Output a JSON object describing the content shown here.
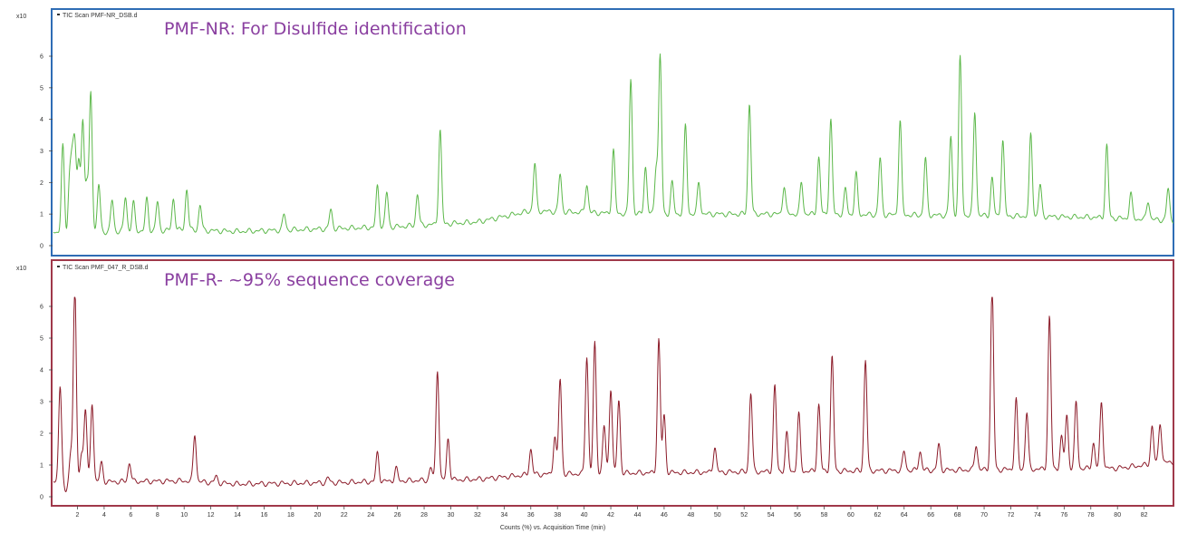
{
  "colors": {
    "frame_top": "#2f6db5",
    "frame_bottom": "#a0384a",
    "trace_top": "#5cb84a",
    "trace_bottom": "#8b1a28",
    "annotation": "#8a3fa0"
  },
  "chart_data": [
    {
      "type": "line",
      "legend": "TIC Scan PMF-NR_DSB.d",
      "annotation": "PMF-NR: For Disulfide identification",
      "y_multiplier": "x10",
      "y_ticks": [
        "0",
        "1",
        "2",
        "3",
        "4",
        "5",
        "6"
      ],
      "ylim": [
        -0.3,
        6.9
      ],
      "xlim": [
        0.2,
        84.2
      ],
      "baseline": [
        [
          0.2,
          0.4
        ],
        [
          10,
          0.5
        ],
        [
          14,
          0.45
        ],
        [
          22,
          0.55
        ],
        [
          26,
          0.6
        ],
        [
          32,
          0.75
        ],
        [
          36,
          1.1
        ],
        [
          44,
          1.0
        ],
        [
          56,
          1.0
        ],
        [
          70,
          0.95
        ],
        [
          78,
          0.9
        ],
        [
          84.2,
          0.8
        ]
      ],
      "peaks": [
        [
          0.9,
          2.8
        ],
        [
          1.2,
          -0.2
        ],
        [
          1.4,
          1.6
        ],
        [
          1.6,
          2.0
        ],
        [
          1.8,
          2.6
        ],
        [
          2.1,
          2.2
        ],
        [
          2.4,
          3.5
        ],
        [
          2.7,
          1.5
        ],
        [
          3.0,
          4.4
        ],
        [
          3.6,
          1.5
        ],
        [
          4.6,
          1.0
        ],
        [
          5.6,
          1.1
        ],
        [
          6.2,
          0.9
        ],
        [
          7.2,
          1.0
        ],
        [
          8.0,
          0.9
        ],
        [
          9.2,
          1.0
        ],
        [
          10.2,
          1.3
        ],
        [
          11.2,
          0.8
        ],
        [
          17.5,
          0.5
        ],
        [
          21.0,
          0.6
        ],
        [
          24.5,
          1.3
        ],
        [
          25.2,
          1.1
        ],
        [
          27.5,
          1.0
        ],
        [
          29.2,
          3.0
        ],
        [
          36.3,
          1.5
        ],
        [
          38.2,
          1.2
        ],
        [
          40.2,
          0.9
        ],
        [
          42.2,
          2.0
        ],
        [
          43.5,
          4.3
        ],
        [
          44.6,
          1.5
        ],
        [
          45.4,
          1.5
        ],
        [
          45.7,
          5.0
        ],
        [
          46.6,
          1.0
        ],
        [
          47.6,
          2.8
        ],
        [
          48.6,
          1.0
        ],
        [
          52.4,
          3.5
        ],
        [
          55.0,
          0.9
        ],
        [
          56.3,
          1.0
        ],
        [
          57.6,
          1.8
        ],
        [
          58.5,
          3.0
        ],
        [
          59.6,
          0.8
        ],
        [
          60.4,
          1.3
        ],
        [
          62.2,
          1.8
        ],
        [
          63.7,
          3.0
        ],
        [
          65.6,
          1.8
        ],
        [
          67.5,
          2.5
        ],
        [
          68.2,
          5.0
        ],
        [
          69.3,
          3.3
        ],
        [
          70.6,
          1.2
        ],
        [
          71.4,
          2.4
        ],
        [
          73.5,
          2.6
        ],
        [
          74.2,
          1.0
        ],
        [
          79.2,
          2.3
        ],
        [
          81.0,
          0.8
        ],
        [
          82.3,
          0.6
        ],
        [
          83.8,
          1.0
        ]
      ]
    },
    {
      "type": "line",
      "legend": "TIC Scan PMF_047_R_DSB.d",
      "annotation": "PMF-R- ~95% sequence coverage",
      "y_multiplier": "x10",
      "y_ticks": [
        "0",
        "1",
        "2",
        "3",
        "4",
        "5",
        "6"
      ],
      "ylim": [
        -0.3,
        6.9
      ],
      "xlim": [
        0.2,
        84.2
      ],
      "x_ticks": [
        2,
        4,
        6,
        8,
        10,
        12,
        14,
        16,
        18,
        20,
        22,
        24,
        26,
        28,
        30,
        32,
        34,
        36,
        38,
        40,
        42,
        44,
        46,
        48,
        50,
        52,
        54,
        56,
        58,
        60,
        62,
        64,
        66,
        68,
        70,
        72,
        74,
        76,
        78,
        80,
        82
      ],
      "xlabel": "Counts (%) vs. Acquisition Time (min)",
      "baseline": [
        [
          0.2,
          0.45
        ],
        [
          10,
          0.5
        ],
        [
          14,
          0.4
        ],
        [
          22,
          0.45
        ],
        [
          26,
          0.5
        ],
        [
          32,
          0.55
        ],
        [
          36,
          0.7
        ],
        [
          44,
          0.75
        ],
        [
          56,
          0.8
        ],
        [
          70,
          0.85
        ],
        [
          80,
          0.9
        ],
        [
          84.2,
          1.1
        ]
      ],
      "peaks": [
        [
          0.7,
          3.1
        ],
        [
          1.1,
          -0.35
        ],
        [
          1.5,
          0.9
        ],
        [
          1.8,
          6.2
        ],
        [
          2.3,
          0.9
        ],
        [
          2.6,
          2.3
        ],
        [
          3.1,
          2.5
        ],
        [
          3.8,
          0.6
        ],
        [
          5.9,
          0.6
        ],
        [
          10.8,
          1.5
        ],
        [
          12.4,
          0.2
        ],
        [
          20.8,
          0.15
        ],
        [
          24.5,
          0.9
        ],
        [
          25.9,
          0.4
        ],
        [
          28.5,
          0.4
        ],
        [
          29.0,
          3.5
        ],
        [
          29.8,
          1.3
        ],
        [
          36.0,
          0.8
        ],
        [
          37.8,
          1.2
        ],
        [
          38.2,
          3.0
        ],
        [
          40.2,
          3.7
        ],
        [
          40.8,
          4.1
        ],
        [
          41.5,
          1.5
        ],
        [
          42.0,
          2.7
        ],
        [
          42.6,
          2.3
        ],
        [
          45.6,
          4.2
        ],
        [
          46.0,
          1.8
        ],
        [
          49.8,
          0.8
        ],
        [
          52.5,
          2.5
        ],
        [
          54.3,
          2.7
        ],
        [
          55.2,
          1.2
        ],
        [
          56.1,
          1.8
        ],
        [
          57.6,
          2.1
        ],
        [
          58.6,
          3.6
        ],
        [
          61.1,
          3.5
        ],
        [
          64.0,
          0.6
        ],
        [
          65.2,
          0.6
        ],
        [
          66.6,
          0.8
        ],
        [
          69.4,
          0.8
        ],
        [
          70.6,
          5.8
        ],
        [
          72.4,
          2.2
        ],
        [
          73.2,
          1.8
        ],
        [
          74.9,
          4.8
        ],
        [
          75.8,
          1.0
        ],
        [
          76.2,
          1.7
        ],
        [
          76.9,
          2.1
        ],
        [
          78.2,
          0.8
        ],
        [
          78.8,
          2.1
        ],
        [
          82.6,
          1.2
        ],
        [
          83.2,
          1.3
        ]
      ]
    }
  ]
}
